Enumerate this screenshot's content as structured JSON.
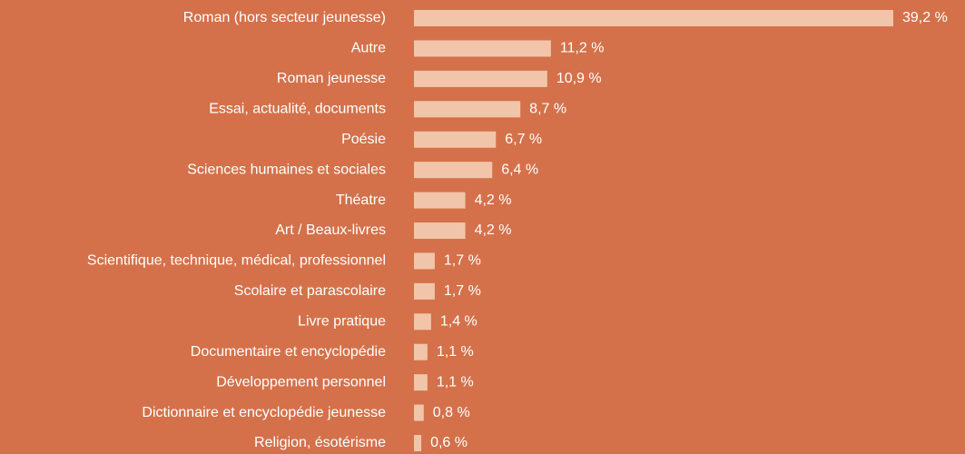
{
  "chart_data": {
    "type": "bar",
    "orientation": "horizontal",
    "categories": [
      "Roman (hors secteur jeunesse)",
      "Autre",
      "Roman jeunesse",
      "Essai, actualité, documents",
      "Poésie",
      "Sciences humaines et sociales",
      "Théatre",
      "Art / Beaux-livres",
      "Scientifique, technique, médical, professionnel",
      "Scolaire et parascolaire",
      "Livre pratique",
      "Documentaire et encyclopédie",
      "Développement personnel",
      "Dictionnaire et encyclopédie jeunesse",
      "Religion, ésotérisme"
    ],
    "values": [
      39.2,
      11.2,
      10.9,
      8.7,
      6.7,
      6.4,
      4.2,
      4.2,
      1.7,
      1.7,
      1.4,
      1.1,
      1.1,
      0.8,
      0.6
    ],
    "value_labels": [
      "39,2 %",
      "11,2 %",
      "10,9 %",
      "8,7 %",
      "6,7 %",
      "6,4 %",
      "4,2 %",
      "4,2 %",
      "1,7 %",
      "1,7 %",
      "1,4 %",
      "1,1 %",
      "1,1 %",
      "0,8 %",
      "0,6 %"
    ],
    "color": "#f1c5a9"
  }
}
